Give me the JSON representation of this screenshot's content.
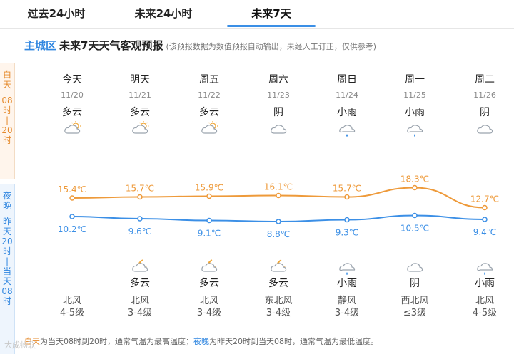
{
  "tabs": [
    {
      "label": "过去24小时",
      "active": false
    },
    {
      "label": "未来24小时",
      "active": false
    },
    {
      "label": "未来7天",
      "active": true
    }
  ],
  "heading": {
    "district": "主城区",
    "title": "未来7天天气客观预报",
    "note": "(该预报数据为数值预报自动输出，未经人工订正，仅供参考)"
  },
  "side": {
    "day_chars": [
      "白",
      "天",
      "",
      "08",
      "时",
      "|",
      "20",
      "时"
    ],
    "night_chars": [
      "夜",
      "晚",
      "",
      "昨",
      "天",
      "20",
      "时",
      "|",
      "当",
      "天",
      "08",
      "时"
    ]
  },
  "days": [
    {
      "weekday": "今天",
      "date": "11/20",
      "day_cond": "多云",
      "day_icon": "partly-cloudy-day-icon",
      "night_cond": "",
      "night_icon": "",
      "wind_dir": "北风",
      "wind_level": "4-5级"
    },
    {
      "weekday": "明天",
      "date": "11/21",
      "day_cond": "多云",
      "day_icon": "partly-cloudy-day-icon",
      "night_cond": "多云",
      "night_icon": "partly-cloudy-night-icon",
      "wind_dir": "北风",
      "wind_level": "3-4级"
    },
    {
      "weekday": "周五",
      "date": "11/22",
      "day_cond": "多云",
      "day_icon": "partly-cloudy-day-icon",
      "night_cond": "多云",
      "night_icon": "partly-cloudy-night-icon",
      "wind_dir": "北风",
      "wind_level": "3-4级"
    },
    {
      "weekday": "周六",
      "date": "11/23",
      "day_cond": "阴",
      "day_icon": "overcast-icon",
      "night_cond": "多云",
      "night_icon": "partly-cloudy-night-icon",
      "wind_dir": "东北风",
      "wind_level": "3-4级"
    },
    {
      "weekday": "周日",
      "date": "11/24",
      "day_cond": "小雨",
      "day_icon": "light-rain-icon",
      "night_cond": "小雨",
      "night_icon": "light-rain-icon",
      "wind_dir": "静风",
      "wind_level": "3-4级"
    },
    {
      "weekday": "周一",
      "date": "11/25",
      "day_cond": "小雨",
      "day_icon": "light-rain-icon",
      "night_cond": "阴",
      "night_icon": "overcast-icon",
      "wind_dir": "西北风",
      "wind_level": "≤3级"
    },
    {
      "weekday": "周二",
      "date": "11/26",
      "day_cond": "阴",
      "day_icon": "overcast-icon",
      "night_cond": "小雨",
      "night_icon": "light-rain-icon",
      "wind_dir": "北风",
      "wind_level": "4-5级"
    }
  ],
  "chart_data": {
    "type": "line",
    "x": [
      "11/20",
      "11/21",
      "11/22",
      "11/23",
      "11/24",
      "11/25",
      "11/26"
    ],
    "series": [
      {
        "values": [
          15.4,
          15.7,
          15.9,
          16.1,
          15.7,
          18.3,
          12.7
        ],
        "labels": [
          "15.4℃",
          "15.7℃",
          "15.9℃",
          "16.1℃",
          "15.7℃",
          "18.3℃",
          "12.7℃"
        ],
        "color": "#ee9a3a"
      },
      {
        "values": [
          10.2,
          9.6,
          9.1,
          8.8,
          9.3,
          10.5,
          9.4
        ],
        "labels": [
          "10.2℃",
          "9.6℃",
          "9.1℃",
          "8.8℃",
          "9.3℃",
          "10.5℃",
          "9.4℃"
        ],
        "color": "#3b8fe6"
      }
    ]
  },
  "footnote": {
    "day_word": "白天",
    "day_text": "为当天08时到20时，通常气温为最高温度；",
    "night_word": "夜晚",
    "night_text": "为昨天20时到当天08时，通常气温为最低温度。"
  },
  "colors": {
    "accent": "#3b8fe6",
    "day": "#ee9a3a",
    "night": "#3b8fe6"
  },
  "watermark": "大成物联"
}
